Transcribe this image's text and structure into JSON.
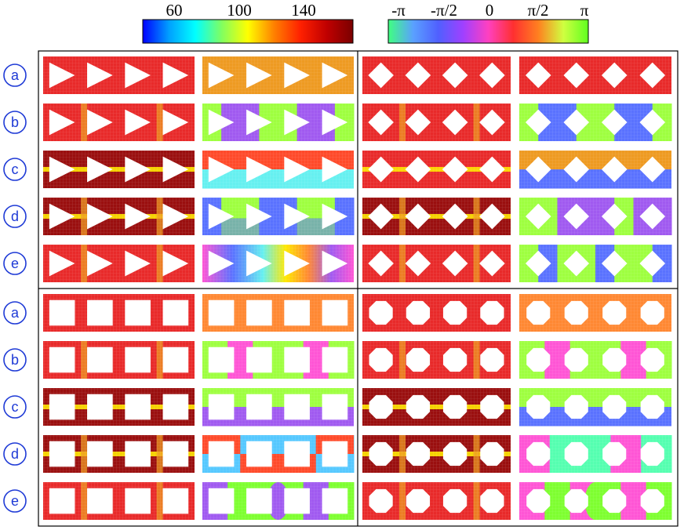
{
  "colorbars": [
    {
      "name": "magnitude-colorbar",
      "ticks": [
        "60",
        "100",
        "140"
      ],
      "stops": [
        "#0000ff",
        "#00a0ff",
        "#00ffff",
        "#80ff60",
        "#ffff00",
        "#ff8000",
        "#ff2000",
        "#c00000",
        "#7a0000"
      ]
    },
    {
      "name": "phase-colorbar",
      "ticks": [
        "-π",
        "-π/2",
        "0",
        "π/2",
        "π"
      ],
      "stops": [
        "#40ff80",
        "#5aa0ff",
        "#5060ff",
        "#a040ff",
        "#ff40c0",
        "#ff3030",
        "#ff8020",
        "#d0ff40",
        "#60ff20"
      ]
    }
  ],
  "row_labels": [
    "a",
    "b",
    "c",
    "d",
    "e",
    "a",
    "b",
    "c",
    "d",
    "e"
  ],
  "colors": {
    "hot": "#e82a2a",
    "dark": "#9a0f0f",
    "yellow": "#ffe800",
    "orange": "#ee9a22",
    "orange2": "#ff8833",
    "purple": "#a05af0",
    "lime": "#9eff40",
    "green": "#7eff30",
    "blue": "#5a72ff",
    "cyan": "#66f0f0",
    "magenta": "#ff55d5",
    "sky": "#55c8ff",
    "red2": "#ff4a2a",
    "mint": "#55ffb0"
  },
  "grid": {
    "rows": [
      {
        "shape": "tri",
        "col1": "orange",
        "col3": "hot",
        "col4": "hot"
      },
      {
        "shape": "tri",
        "col1": "purple_lime",
        "col3": "hot",
        "col4": "blue_lime"
      },
      {
        "shape": "tri",
        "col1": "hot_cyan",
        "col3": "hot",
        "col4": "orange_blue"
      },
      {
        "shape": "tri",
        "col1": "blue_lime_mix",
        "col3": "dark",
        "col4": "lime_purple"
      },
      {
        "shape": "tri",
        "col1": "rainbow",
        "col3": "hot",
        "col4": "lime_blue"
      },
      {
        "shape": "sq",
        "col1": "orange2",
        "col3": "hot",
        "col4": "orange2"
      },
      {
        "shape": "sq",
        "col1": "lime_magenta",
        "col3": "hot",
        "col4": "lime_magenta"
      },
      {
        "shape": "sq",
        "col1": "lime_purple_h",
        "col3": "dark",
        "col4": "lime_blue_h"
      },
      {
        "shape": "sq",
        "col1": "red_sky",
        "col3": "dark",
        "col4": "magenta_mint"
      },
      {
        "shape": "sq",
        "col1": "purple_green",
        "col3": "hot",
        "col4": "magenta_green"
      }
    ]
  }
}
